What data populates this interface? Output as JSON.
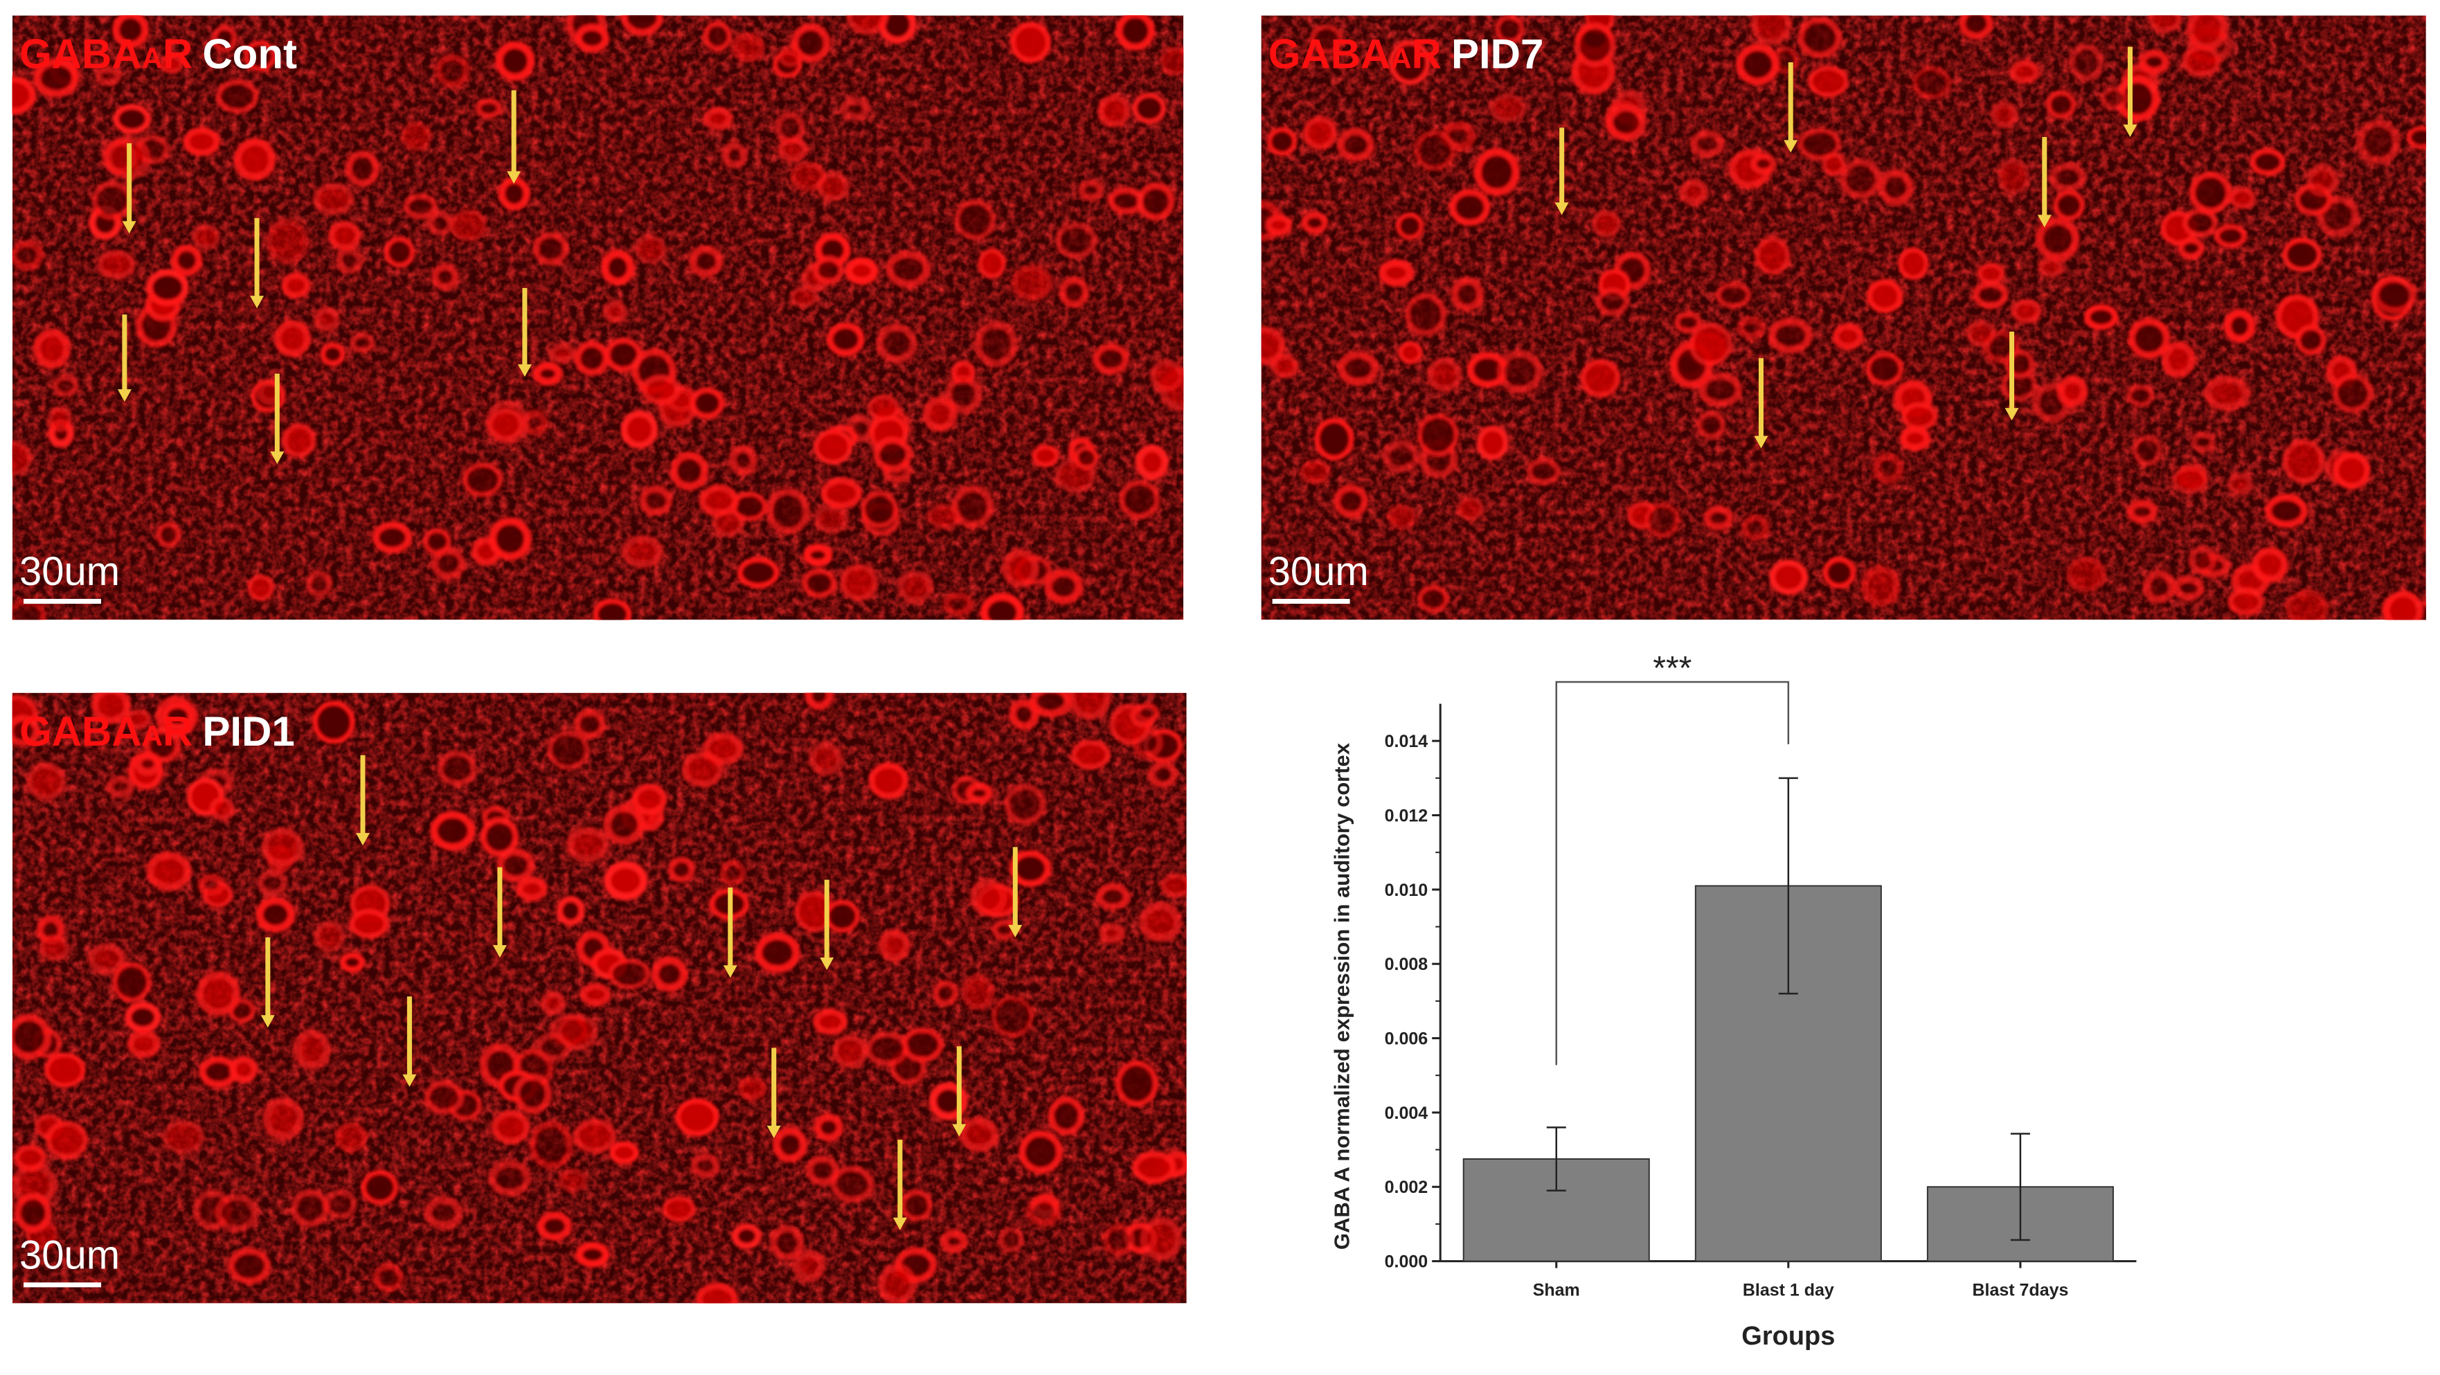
{
  "panels": [
    {
      "marker": "GABA",
      "marker_sub": "A",
      "marker_end": "R",
      "label": "Cont",
      "scale_bar": "30um"
    },
    {
      "marker": "GABA",
      "marker_sub": "A",
      "marker_end": "R",
      "label": "PID7",
      "scale_bar": "30um"
    },
    {
      "marker": "GABA",
      "marker_sub": "A",
      "marker_end": "R",
      "label": "PID1",
      "scale_bar": "30um"
    }
  ],
  "chart_data": {
    "type": "bar",
    "xlabel": "Groups",
    "ylabel": "GABA A normalized expression in auditory cortex",
    "categories": [
      "Sham",
      "Blast 1 day",
      "Blast 7days"
    ],
    "series": [
      {
        "color": "#808080",
        "values": [
          0.00275,
          0.0101,
          0.002
        ],
        "errors": [
          0.00085,
          0.0029,
          0.00143
        ]
      }
    ],
    "ylim": [
      0,
      0.015
    ],
    "yticks": [
      {
        "value": 0,
        "label": "0.000"
      },
      {
        "value": 0.002,
        "label": "0.002"
      },
      {
        "value": 0.004,
        "label": "0.004"
      },
      {
        "value": 0.006,
        "label": "0.006"
      },
      {
        "value": 0.008,
        "label": "0.008"
      },
      {
        "value": 0.01,
        "label": "0.010"
      },
      {
        "value": 0.012,
        "label": "0.012"
      },
      {
        "value": 0.014,
        "label": "0.014"
      }
    ],
    "annotation": "***"
  }
}
